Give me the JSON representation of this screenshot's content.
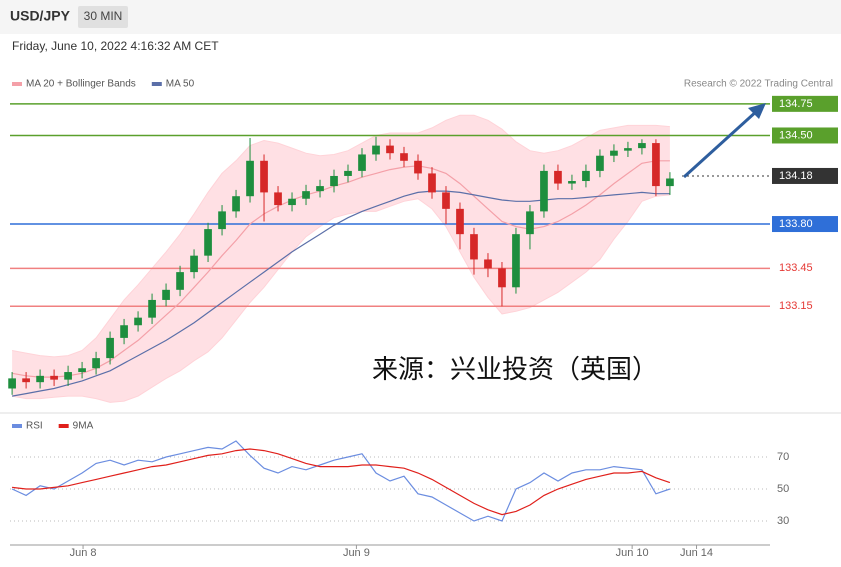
{
  "header": {
    "title": "USD/JPY",
    "timeframe": "30 MIN",
    "subtitle": "Friday, June 10, 2022 4:16:32 AM CET",
    "credit": "Research © 2022 Trading Central",
    "watermark": "来源：兴业投资（英国）"
  },
  "chart_data": [
    {
      "type": "candlestick",
      "up_color": "#1e8e3e",
      "down_color": "#d62828",
      "xlim": [
        -0.15,
        54.15
      ],
      "ylim": [
        132.33,
        134.82
      ],
      "open": [
        132.5,
        132.58,
        132.55,
        132.6,
        132.57,
        132.63,
        132.66,
        132.74,
        132.9,
        133.0,
        133.06,
        133.2,
        133.28,
        133.42,
        133.55,
        133.76,
        133.9,
        134.02,
        134.3,
        134.05,
        133.95,
        134.0,
        134.06,
        134.1,
        134.18,
        134.22,
        134.35,
        134.42,
        134.36,
        134.3,
        134.2,
        134.05,
        133.92,
        133.72,
        133.52,
        133.45,
        133.3,
        133.72,
        133.9,
        134.22,
        134.12,
        134.14,
        134.22,
        134.34,
        134.38,
        134.4,
        134.44,
        134.1
      ],
      "high": [
        132.63,
        132.63,
        132.65,
        132.65,
        132.68,
        132.71,
        132.79,
        132.95,
        133.05,
        133.11,
        133.25,
        133.33,
        133.47,
        133.6,
        133.81,
        133.95,
        134.07,
        134.48,
        134.35,
        134.1,
        134.05,
        134.11,
        134.15,
        134.23,
        134.27,
        134.4,
        134.49,
        134.47,
        134.41,
        134.35,
        134.25,
        134.1,
        133.97,
        133.77,
        133.57,
        133.5,
        133.77,
        133.95,
        134.27,
        134.27,
        134.19,
        134.27,
        134.39,
        134.43,
        134.45,
        134.47,
        134.47,
        134.21
      ],
      "low": [
        132.45,
        132.5,
        132.5,
        132.52,
        132.52,
        132.58,
        132.61,
        132.69,
        132.85,
        132.95,
        133.01,
        133.15,
        133.23,
        133.37,
        133.5,
        133.71,
        133.85,
        133.97,
        133.82,
        133.9,
        133.9,
        133.95,
        134.01,
        134.05,
        134.13,
        134.17,
        134.3,
        134.31,
        134.25,
        134.15,
        134.0,
        133.8,
        133.6,
        133.4,
        133.38,
        133.15,
        133.25,
        133.6,
        133.85,
        134.07,
        134.07,
        134.09,
        134.17,
        134.29,
        134.33,
        134.35,
        134.02,
        134.03
      ],
      "close": [
        132.58,
        132.55,
        132.6,
        132.57,
        132.63,
        132.66,
        132.74,
        132.9,
        133.0,
        133.06,
        133.2,
        133.28,
        133.42,
        133.55,
        133.76,
        133.9,
        134.02,
        134.3,
        134.05,
        133.95,
        134.0,
        134.06,
        134.1,
        134.18,
        134.22,
        134.35,
        134.42,
        134.36,
        134.3,
        134.2,
        134.05,
        133.92,
        133.72,
        133.52,
        133.45,
        133.3,
        133.72,
        133.9,
        134.22,
        134.12,
        134.14,
        134.22,
        134.34,
        134.38,
        134.4,
        134.44,
        134.1,
        134.16
      ],
      "overlays": [
        {
          "name": "MA 20 + Bollinger Bands",
          "color": "#f4a0a8",
          "band_color": "#ffd3d8",
          "values": [
            132.62,
            132.6,
            132.59,
            132.59,
            132.6,
            132.62,
            132.66,
            132.72,
            132.8,
            132.88,
            132.98,
            133.08,
            133.18,
            133.3,
            133.42,
            133.55,
            133.67,
            133.8,
            133.88,
            133.94,
            133.99,
            134.03,
            134.06,
            134.1,
            134.13,
            134.17,
            134.2,
            134.23,
            134.25,
            134.26,
            134.24,
            134.2,
            134.12,
            134.02,
            133.92,
            133.82,
            133.78,
            133.76,
            133.78,
            133.82,
            133.88,
            133.95,
            134.03,
            134.12,
            134.2,
            134.28,
            134.3,
            134.3
          ],
          "upper": [
            132.8,
            132.78,
            132.76,
            132.75,
            132.76,
            132.8,
            132.9,
            133.05,
            133.2,
            133.32,
            133.45,
            133.58,
            133.72,
            133.88,
            134.05,
            134.2,
            134.3,
            134.42,
            134.46,
            134.44,
            134.4,
            134.36,
            134.34,
            134.35,
            134.38,
            134.44,
            134.5,
            134.52,
            134.52,
            134.52,
            134.56,
            134.62,
            134.66,
            134.66,
            134.62,
            134.55,
            134.45,
            134.38,
            134.36,
            134.38,
            134.42,
            134.48,
            134.54,
            134.56,
            134.58,
            134.58,
            134.58,
            134.57
          ],
          "lower": [
            132.44,
            132.42,
            132.42,
            132.43,
            132.44,
            132.44,
            132.42,
            132.39,
            132.4,
            132.44,
            132.51,
            132.58,
            132.64,
            132.72,
            132.79,
            132.9,
            133.04,
            133.18,
            133.3,
            133.44,
            133.58,
            133.7,
            133.78,
            133.85,
            133.88,
            133.9,
            133.9,
            133.94,
            133.98,
            134.0,
            133.92,
            133.78,
            133.58,
            133.38,
            133.22,
            133.09,
            133.11,
            133.14,
            133.2,
            133.26,
            133.34,
            133.42,
            133.52,
            133.68,
            133.82,
            133.98,
            134.02,
            134.03
          ]
        },
        {
          "name": "MA 50",
          "color": "#5b6fa8",
          "values": [
            132.44,
            132.46,
            132.48,
            132.5,
            132.53,
            132.56,
            132.6,
            132.64,
            132.7,
            132.76,
            132.82,
            132.88,
            132.95,
            133.02,
            133.1,
            133.18,
            133.26,
            133.34,
            133.42,
            133.5,
            133.58,
            133.65,
            133.72,
            133.79,
            133.85,
            133.9,
            133.94,
            133.98,
            134.02,
            134.05,
            134.06,
            134.06,
            134.05,
            134.03,
            134.01,
            133.99,
            133.98,
            133.98,
            133.99,
            134.0,
            134.0,
            134.01,
            134.02,
            134.03,
            134.04,
            134.05,
            134.04,
            134.04
          ]
        }
      ],
      "levels": [
        {
          "value": 134.75,
          "color": "#5aa02c",
          "label_box": true
        },
        {
          "value": 134.5,
          "label": "134.50",
          "color": "#5aa02c",
          "label_box": true
        },
        {
          "value": 134.18,
          "color": "#333333",
          "label_box": true,
          "dotted": true
        },
        {
          "value": 133.8,
          "label": "133.80",
          "color": "#2f6fd8",
          "label_box": true
        },
        {
          "value": 133.45,
          "color": "#f08080",
          "label_box": false
        },
        {
          "value": 133.15,
          "color": "#f08080",
          "label_box": false
        }
      ]
    },
    {
      "type": "line",
      "xlim": [
        -0.15,
        54.15
      ],
      "ylim": [
        18.1,
        93.1
      ],
      "yticks": [
        30,
        50,
        70
      ],
      "xticks": [
        {
          "value": 5.07,
          "label": "Jun 8"
        },
        {
          "value": 24.6,
          "label": "Jun 9"
        },
        {
          "value": 44.3,
          "label": "Jun 10"
        },
        {
          "value": 48.9,
          "label": "Jun 14"
        }
      ],
      "series": [
        {
          "name": "RSI",
          "color": "#6b8de0",
          "values": [
            50,
            46,
            52,
            50,
            55,
            60,
            66,
            68,
            65,
            68,
            67,
            70,
            72,
            74,
            76,
            75,
            80,
            71,
            63,
            60,
            64,
            62,
            65,
            68,
            70,
            72,
            60,
            55,
            58,
            47,
            45,
            40,
            35,
            30,
            33,
            30,
            50,
            54,
            60,
            55,
            60,
            62,
            62,
            64,
            63,
            62,
            47,
            50
          ]
        },
        {
          "name": "9MA",
          "color": "#e0201b",
          "values": [
            51,
            50,
            50,
            51,
            52,
            54,
            56,
            58,
            60,
            62,
            64,
            65,
            67,
            69,
            71,
            72,
            74,
            75,
            74,
            72,
            69,
            66,
            64,
            64,
            64,
            65,
            65,
            64,
            63,
            60,
            56,
            51,
            46,
            41,
            37,
            34,
            36,
            40,
            46,
            50,
            53,
            56,
            58,
            60,
            60,
            61,
            57,
            54
          ]
        }
      ]
    }
  ]
}
